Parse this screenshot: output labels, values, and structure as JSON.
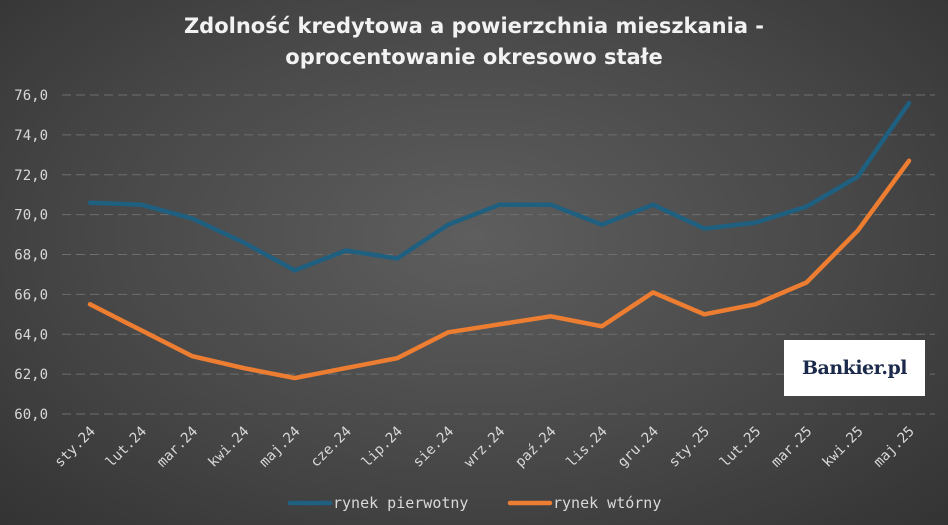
{
  "chart_data": {
    "type": "line",
    "title": "Zdolność kredytowa a powierzchnia mieszkania - oprocentowanie okresowo stałe",
    "title_lines": [
      "Zdolność kredytowa a powierzchnia mieszkania -",
      "oprocentowanie okresowo stałe"
    ],
    "categories": [
      "sty.24",
      "lut.24",
      "mar.24",
      "kwi.24",
      "maj.24",
      "cze.24",
      "lip.24",
      "sie.24",
      "wrz.24",
      "paź.24",
      "lis.24",
      "gru.24",
      "sty.25",
      "lut.25",
      "mar.25",
      "kwi.25",
      "maj.25"
    ],
    "series": [
      {
        "name": "rynek pierwotny",
        "color": "#1f5f7f",
        "values": [
          70.6,
          70.5,
          69.8,
          68.6,
          67.2,
          68.2,
          67.8,
          69.5,
          70.5,
          70.5,
          69.5,
          70.5,
          69.3,
          69.6,
          70.4,
          71.9,
          75.6
        ]
      },
      {
        "name": "rynek wtórny",
        "color": "#ed7d31",
        "values": [
          65.5,
          64.2,
          62.9,
          62.3,
          61.8,
          62.3,
          62.8,
          64.1,
          64.5,
          64.9,
          64.4,
          66.1,
          65.0,
          65.5,
          66.6,
          69.2,
          72.7
        ]
      }
    ],
    "y_ticks": [
      "60,0",
      "62,0",
      "64,0",
      "66,0",
      "68,0",
      "70,0",
      "72,0",
      "74,0",
      "76,0"
    ],
    "ylim": [
      60,
      76
    ],
    "xlabel": "",
    "ylabel": "",
    "grid": true,
    "legend_position": "bottom"
  },
  "logo": {
    "text": "Bankier.pl"
  }
}
